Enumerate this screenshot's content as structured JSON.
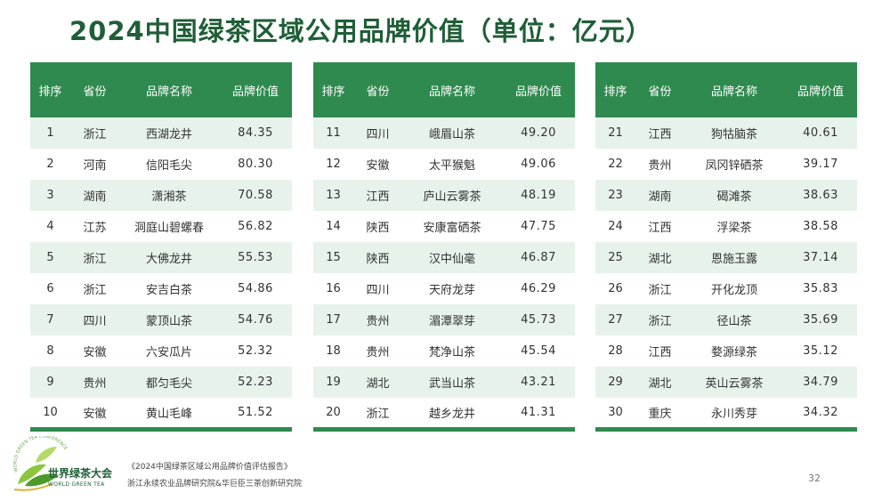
{
  "title": "2024中国绿茶区域公用品牌价值（单位：亿元）",
  "headers": [
    "排序",
    "省份",
    "品牌名称",
    "品牌价值"
  ],
  "tables": [
    [
      {
        "rank": "1",
        "province": "浙江",
        "brand": "西湖龙井",
        "value": "84.35"
      },
      {
        "rank": "2",
        "province": "河南",
        "brand": "信阳毛尖",
        "value": "80.30"
      },
      {
        "rank": "3",
        "province": "湖南",
        "brand": "潇湘茶",
        "value": "70.58"
      },
      {
        "rank": "4",
        "province": "江苏",
        "brand": "洞庭山碧螺春",
        "value": "56.82"
      },
      {
        "rank": "5",
        "province": "浙江",
        "brand": "大佛龙井",
        "value": "55.53"
      },
      {
        "rank": "6",
        "province": "浙江",
        "brand": "安吉白茶",
        "value": "54.86"
      },
      {
        "rank": "7",
        "province": "四川",
        "brand": "蒙顶山茶",
        "value": "54.76"
      },
      {
        "rank": "8",
        "province": "安徽",
        "brand": "六安瓜片",
        "value": "52.32"
      },
      {
        "rank": "9",
        "province": "贵州",
        "brand": "都匀毛尖",
        "value": "52.23"
      },
      {
        "rank": "10",
        "province": "安徽",
        "brand": "黄山毛峰",
        "value": "51.52"
      }
    ],
    [
      {
        "rank": "11",
        "province": "四川",
        "brand": "峨眉山茶",
        "value": "49.20"
      },
      {
        "rank": "12",
        "province": "安徽",
        "brand": "太平猴魁",
        "value": "49.06"
      },
      {
        "rank": "13",
        "province": "江西",
        "brand": "庐山云雾茶",
        "value": "48.19"
      },
      {
        "rank": "14",
        "province": "陕西",
        "brand": "安康富硒茶",
        "value": "47.75"
      },
      {
        "rank": "15",
        "province": "陕西",
        "brand": "汉中仙毫",
        "value": "46.87"
      },
      {
        "rank": "16",
        "province": "四川",
        "brand": "天府龙芽",
        "value": "46.29"
      },
      {
        "rank": "17",
        "province": "贵州",
        "brand": "湄潭翠芽",
        "value": "45.73"
      },
      {
        "rank": "18",
        "province": "贵州",
        "brand": "梵净山茶",
        "value": "45.54"
      },
      {
        "rank": "19",
        "province": "湖北",
        "brand": "武当山茶",
        "value": "43.21"
      },
      {
        "rank": "20",
        "province": "浙江",
        "brand": "越乡龙井",
        "value": "41.31"
      }
    ],
    [
      {
        "rank": "21",
        "province": "江西",
        "brand": "狗牯脑茶",
        "value": "40.61"
      },
      {
        "rank": "22",
        "province": "贵州",
        "brand": "凤冈锌硒茶",
        "value": "39.17"
      },
      {
        "rank": "23",
        "province": "湖南",
        "brand": "碣滩茶",
        "value": "38.63"
      },
      {
        "rank": "24",
        "province": "江西",
        "brand": "浮梁茶",
        "value": "38.58"
      },
      {
        "rank": "25",
        "province": "湖北",
        "brand": "恩施玉露",
        "value": "37.14"
      },
      {
        "rank": "26",
        "province": "浙江",
        "brand": "开化龙顶",
        "value": "35.83"
      },
      {
        "rank": "27",
        "province": "浙江",
        "brand": "径山茶",
        "value": "35.69"
      },
      {
        "rank": "28",
        "province": "江西",
        "brand": "婺源绿茶",
        "value": "35.12"
      },
      {
        "rank": "29",
        "province": "湖北",
        "brand": "英山云雾茶",
        "value": "34.79"
      },
      {
        "rank": "30",
        "province": "重庆",
        "brand": "永川秀芽",
        "value": "34.32"
      }
    ]
  ],
  "logo": {
    "name": "世界绿茶大会",
    "sub": "WORLD GREEN TEA",
    "ring_text": "WORLD GREEN TEA CONFERENCE"
  },
  "source": {
    "line1": "《2024中国绿茶区域公用品牌价值评估报告》",
    "line2": "浙江永续农业品牌研究院&华巨臣三茶创新研究院"
  },
  "page_number": "32",
  "colors": {
    "title": "#1f5e36",
    "header_bg": "#2f8a4f",
    "row_alt": "#e7f3ea"
  }
}
